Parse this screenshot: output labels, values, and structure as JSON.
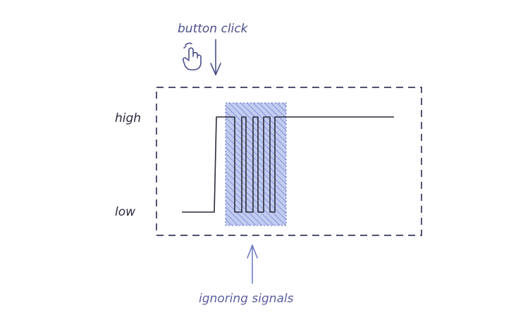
{
  "annotations": {
    "top_label": "button click",
    "bottom_label": "ignoring signals"
  },
  "levels": {
    "high": "high",
    "low": "low"
  },
  "icons": {
    "pointer": "hand-pointer-icon"
  },
  "colors": {
    "label_blue": "#5a5fa0",
    "frame": "#35385a",
    "signal": "#2a2a3a",
    "hatch_fill": "#aebbe8",
    "hatch_stroke": "#5c6fc9",
    "arrow_blue": "#6f7cc6",
    "level_text": "#2a2a40"
  }
}
